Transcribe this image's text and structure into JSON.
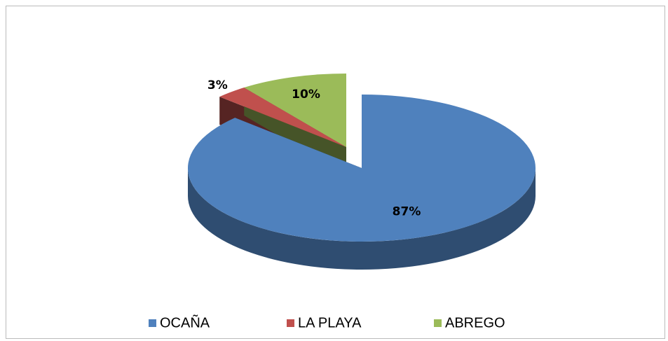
{
  "chart_data": {
    "type": "pie",
    "categories": [
      "OCAÑA",
      "LA PLAYA",
      "ABREGO"
    ],
    "values": [
      87,
      3,
      10
    ],
    "value_labels": [
      "87%",
      "3%",
      "10%"
    ],
    "colors": [
      "#4f81bd",
      "#c0504d",
      "#9bbb59"
    ],
    "legend": "bottom"
  }
}
